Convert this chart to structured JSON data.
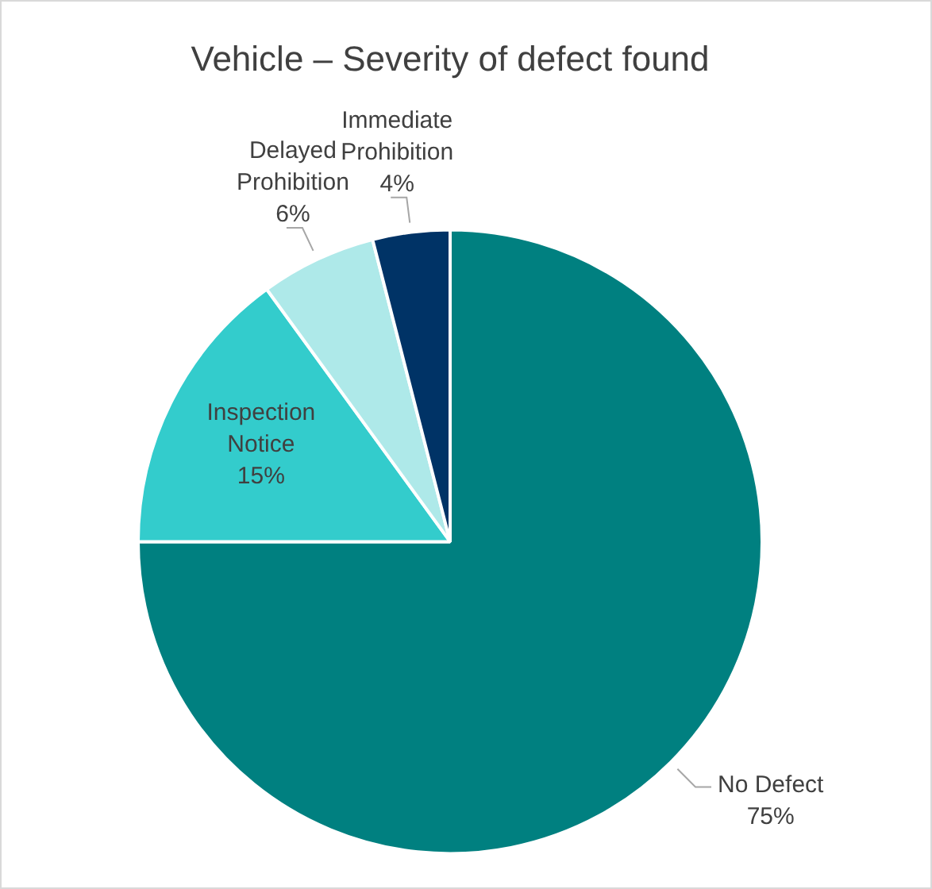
{
  "chart_data": {
    "type": "pie",
    "title": "Vehicle – Severity of defect found",
    "categories": [
      "No Defect",
      "Inspection Notice",
      "Delayed Prohibition",
      "Immediate Prohibition"
    ],
    "values": [
      75,
      15,
      6,
      4
    ],
    "value_labels": [
      "75%",
      "15%",
      "6%",
      "4%"
    ],
    "colors": [
      "#008080",
      "#33cccc",
      "#aee9e9",
      "#003366"
    ],
    "legend": false
  }
}
